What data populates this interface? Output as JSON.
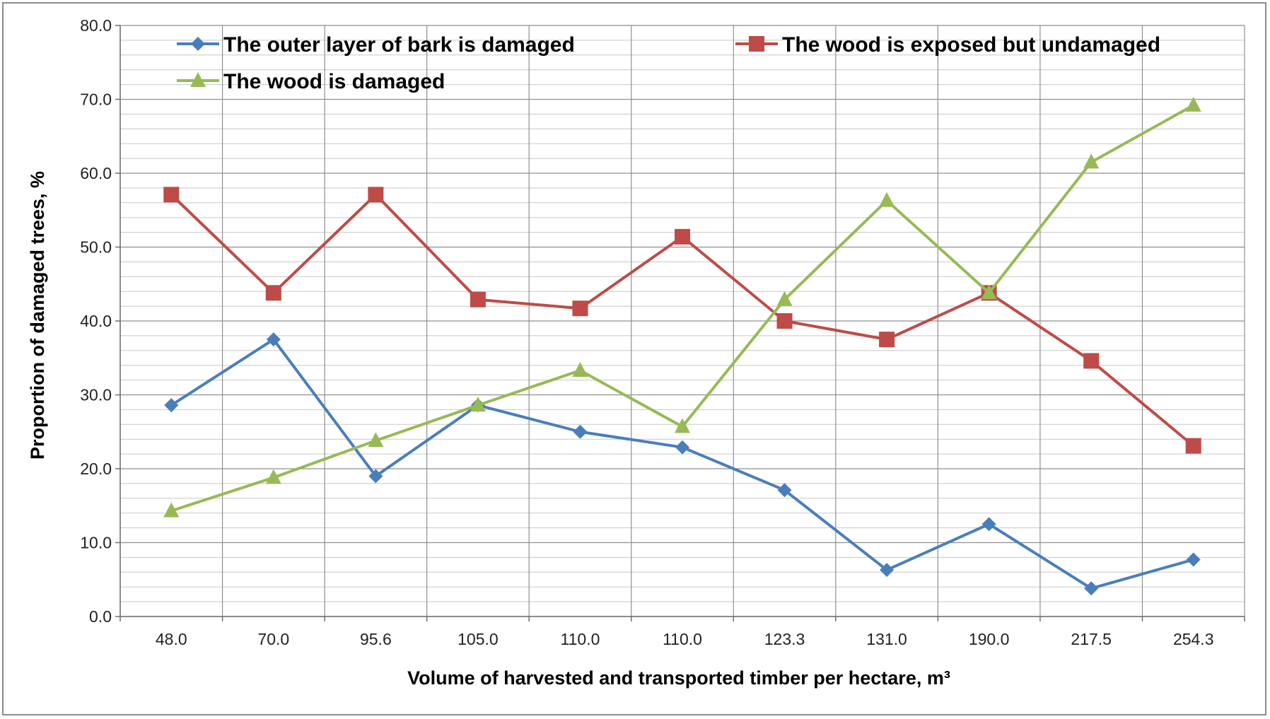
{
  "chart_data": {
    "type": "line",
    "title": "",
    "xlabel": "Volume of harvested and transported timber per hectare, m³",
    "ylabel": "Proportion of damaged trees, %",
    "categories": [
      "48.0",
      "70.0",
      "95.6",
      "105.0",
      "110.0",
      "110.0",
      "123.3",
      "131.0",
      "190.0",
      "217.5",
      "254.3"
    ],
    "ylim": [
      0,
      80
    ],
    "y_ticks": [
      "0.0",
      "10.0",
      "20.0",
      "30.0",
      "40.0",
      "50.0",
      "60.0",
      "70.0",
      "80.0"
    ],
    "y_major_step": 10,
    "y_minor_step": 2,
    "grid": true,
    "legend_position": "top",
    "series": [
      {
        "name": "The outer layer of bark is damaged",
        "color": "#4a7ebb",
        "marker": "diamond",
        "values": [
          28.6,
          37.5,
          19.0,
          28.6,
          25.0,
          22.9,
          17.1,
          6.3,
          12.5,
          3.8,
          7.7
        ]
      },
      {
        "name": "The wood is exposed but undamaged",
        "color": "#be4b48",
        "marker": "square",
        "values": [
          57.1,
          43.8,
          57.1,
          42.9,
          41.7,
          51.4,
          40.0,
          37.5,
          43.8,
          34.6,
          23.1
        ]
      },
      {
        "name": "The wood is damaged",
        "color": "#98b954",
        "marker": "triangle",
        "values": [
          14.3,
          18.8,
          23.8,
          28.6,
          33.3,
          25.7,
          42.9,
          56.3,
          43.8,
          61.5,
          69.2
        ]
      }
    ]
  }
}
